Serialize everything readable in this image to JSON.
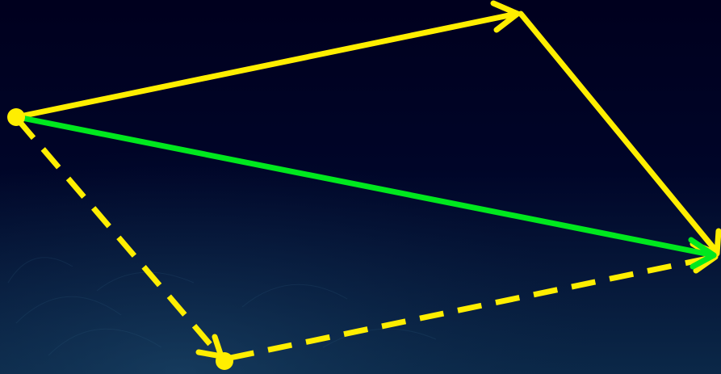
{
  "diagram": {
    "type": "vector-addition",
    "colors": {
      "background_top": "#00001e",
      "background_bottom": "#0b2848",
      "vector": "#ffee00",
      "resultant": "#00e81e"
    },
    "vectors": [
      {
        "id": "a",
        "style": "solid",
        "color": "#ffee00",
        "arrowhead": true
      },
      {
        "id": "b",
        "style": "solid",
        "color": "#ffee00",
        "arrowhead": true
      },
      {
        "id": "b-shifted",
        "style": "dashed",
        "color": "#ffee00",
        "arrowhead": true
      },
      {
        "id": "a-shifted",
        "style": "dashed",
        "color": "#ffee00",
        "arrowhead": true
      },
      {
        "id": "resultant",
        "style": "solid",
        "color": "#00e81e",
        "arrowhead": true
      }
    ]
  }
}
